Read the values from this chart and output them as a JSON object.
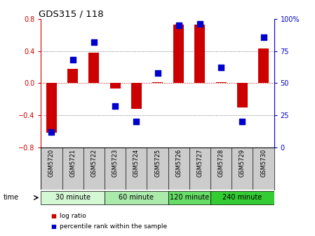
{
  "title": "GDS315 / 118",
  "samples": [
    "GSM5720",
    "GSM5721",
    "GSM5722",
    "GSM5723",
    "GSM5724",
    "GSM5725",
    "GSM5726",
    "GSM5727",
    "GSM5728",
    "GSM5729",
    "GSM5730"
  ],
  "log_ratio": [
    -0.62,
    0.18,
    0.38,
    -0.07,
    -0.32,
    0.01,
    0.73,
    0.73,
    0.01,
    -0.3,
    0.43
  ],
  "percentile": [
    12,
    68,
    82,
    32,
    20,
    58,
    95,
    96,
    62,
    20,
    86
  ],
  "ylim": [
    -0.8,
    0.8
  ],
  "y2lim": [
    0,
    100
  ],
  "yticks": [
    -0.8,
    -0.4,
    0.0,
    0.4,
    0.8
  ],
  "y2ticks": [
    0,
    25,
    50,
    75,
    100
  ],
  "bar_color": "#cc0000",
  "dot_color": "#0000cc",
  "groups": [
    {
      "label": "30 minute",
      "start": 0,
      "end": 2
    },
    {
      "label": "60 minute",
      "start": 3,
      "end": 5
    },
    {
      "label": "120 minute",
      "start": 6,
      "end": 7
    },
    {
      "label": "240 minute",
      "start": 8,
      "end": 10
    }
  ],
  "group_colors": [
    "#d4f7d4",
    "#aaeaaa",
    "#66dd66",
    "#33cc33"
  ],
  "tick_color_left": "#cc0000",
  "tick_color_right": "#0000cc",
  "bg_color": "#ffffff",
  "plot_bg": "#ffffff",
  "label_bg": "#cccccc",
  "legend_log_ratio": "log ratio",
  "legend_percentile": "percentile rank within the sample",
  "bar_width": 0.5
}
